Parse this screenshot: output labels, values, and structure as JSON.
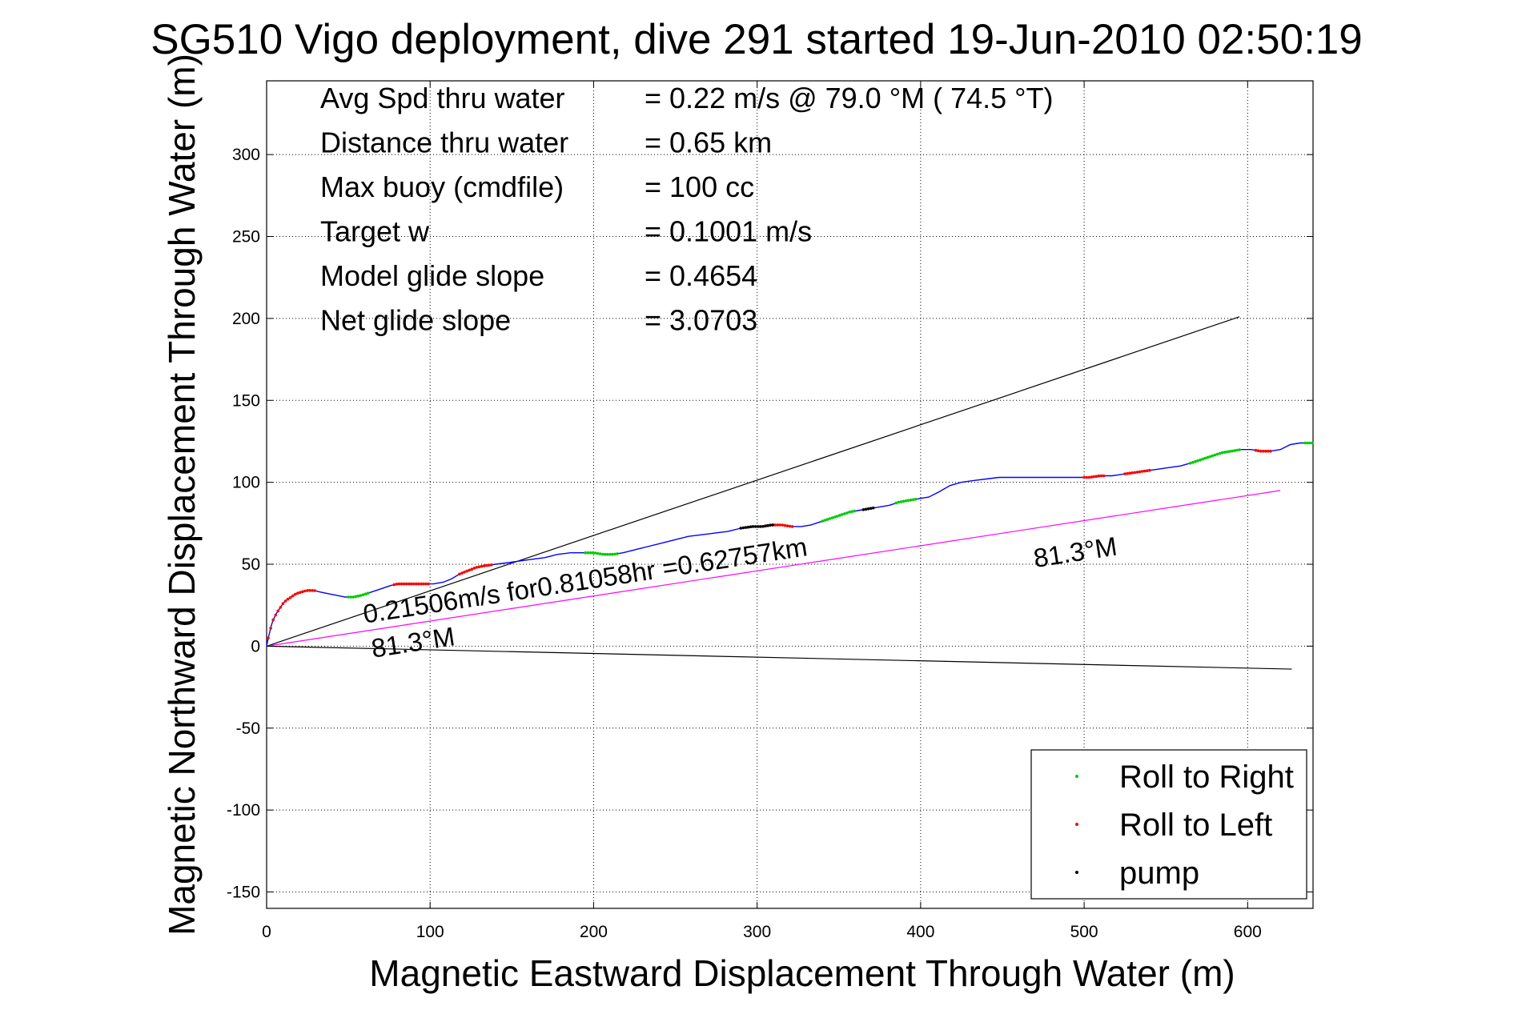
{
  "chart_data": {
    "type": "line",
    "title": "SG510 Vigo deployment, dive 291 started 19-Jun-2010 02:50:19",
    "xlabel": "Magnetic Eastward Displacement Through Water (m)",
    "ylabel": "Magnetic Northward Displacement Through Water (m)",
    "xlim": [
      0,
      640
    ],
    "ylim": [
      -160,
      345
    ],
    "x_ticks": [
      0,
      100,
      200,
      300,
      400,
      500,
      600
    ],
    "x_tick_labels": [
      "0",
      "100",
      "200",
      "300",
      "400",
      "500",
      "600"
    ],
    "y_ticks": [
      -150,
      -100,
      -50,
      0,
      50,
      100,
      150,
      200,
      250,
      300
    ],
    "y_tick_labels": [
      "-150",
      "-100",
      "-50",
      "0",
      "50",
      "100",
      "150",
      "200",
      "250",
      "300"
    ],
    "grid": true,
    "legend_position": "bottom-right",
    "summary": [
      {
        "label": "Avg Spd thru water",
        "value": "=  0.22 m/s @  79.0 °M ( 74.5 °T)"
      },
      {
        "label": "Distance thru water",
        "value": "=  0.65 km"
      },
      {
        "label": "Max buoy (cmdfile)",
        "value": "= 100 cc"
      },
      {
        "label": "Target w",
        "value": "= 0.1001 m/s"
      },
      {
        "label": "Model glide slope",
        "value": "= 0.4654"
      },
      {
        "label": "Net glide slope",
        "value": "= 3.0703"
      }
    ],
    "annotations": [
      {
        "text": "0.21506m/s for0.81058hr =0.62757km",
        "x": 60,
        "y": 14,
        "angle_deg": -8.7
      },
      {
        "text": "81.3°M",
        "x": 65,
        "y": -7,
        "angle_deg": -8.7
      },
      {
        "text": "81.3°M",
        "x": 470,
        "y": 48,
        "angle_deg": -8.7
      }
    ],
    "series": [
      {
        "name": "track",
        "color": "#0000ff",
        "x": [
          0,
          1,
          2,
          3,
          4,
          6,
          8,
          10,
          12,
          15,
          18,
          21,
          25,
          29,
          33,
          38,
          43,
          48,
          53,
          58,
          64,
          70,
          76,
          80,
          85,
          90,
          96,
          102,
          108,
          113,
          118,
          123,
          128,
          133,
          140,
          148,
          155,
          162,
          170,
          178,
          186,
          194,
          200,
          206,
          212,
          218,
          226,
          234,
          242,
          250,
          258,
          266,
          274,
          282,
          290,
          297,
          303,
          309,
          315,
          321,
          327,
          333,
          339,
          345,
          351,
          357,
          363,
          369,
          375,
          381,
          387,
          393,
          399,
          405,
          411,
          418,
          425,
          432,
          440,
          448,
          456,
          464,
          472,
          480,
          488,
          496,
          503,
          510,
          517,
          524,
          531,
          538,
          545,
          552,
          559,
          566,
          572,
          578,
          584,
          590,
          596,
          602,
          608,
          614,
          620,
          626,
          632,
          638,
          640
        ],
        "y": [
          0,
          5,
          9,
          13,
          16,
          20,
          23,
          26,
          28,
          30,
          32,
          33,
          34,
          34,
          33,
          32,
          31,
          30,
          30,
          31,
          33,
          35,
          37,
          38,
          38,
          38,
          38,
          38,
          39,
          41,
          44,
          46,
          48,
          49,
          50,
          51,
          52,
          53,
          54,
          56,
          57,
          57,
          57,
          56,
          56,
          57,
          59,
          61,
          63,
          65,
          67,
          68,
          69,
          70,
          72,
          73,
          73,
          74,
          74,
          73,
          73,
          74,
          76,
          78,
          80,
          82,
          83,
          84,
          85,
          86,
          88,
          89,
          90,
          91,
          94,
          98,
          100,
          101,
          102,
          103,
          103,
          103,
          103,
          103,
          103,
          103,
          103,
          104,
          104,
          105,
          106,
          107,
          108,
          109,
          110,
          112,
          114,
          116,
          118,
          119,
          120,
          120,
          119,
          119,
          120,
          123,
          124,
          124,
          124
        ]
      },
      {
        "name": "Roll to Right",
        "color": "#00cc00",
        "segments": [
          [
            50,
            62
          ],
          [
            195,
            215
          ],
          [
            340,
            360
          ],
          [
            385,
            398
          ],
          [
            565,
            595
          ],
          [
            635,
            640
          ]
        ]
      },
      {
        "name": "Roll to Left",
        "color": "#ff0000",
        "segments": [
          [
            1,
            30
          ],
          [
            78,
            100
          ],
          [
            118,
            138
          ],
          [
            305,
            322
          ],
          [
            500,
            512
          ],
          [
            525,
            540
          ],
          [
            605,
            615
          ]
        ]
      },
      {
        "name": "pump",
        "color": "#000000",
        "segments": [
          [
            290,
            310
          ],
          [
            365,
            372
          ]
        ]
      },
      {
        "name": "upper bound line",
        "color": "#000000",
        "x": [
          0,
          595
        ],
        "y": [
          0,
          201
        ]
      },
      {
        "name": "course line",
        "color": "#ff00ff",
        "x": [
          0,
          620
        ],
        "y": [
          0,
          95
        ]
      },
      {
        "name": "lower bound line",
        "color": "#000000",
        "x": [
          0,
          627
        ],
        "y": [
          0,
          -14
        ]
      }
    ],
    "legend": [
      {
        "label": "Roll to Right",
        "color": "#00cc00"
      },
      {
        "label": "Roll to Left",
        "color": "#ff0000"
      },
      {
        "label": "pump",
        "color": "#000000"
      }
    ]
  }
}
